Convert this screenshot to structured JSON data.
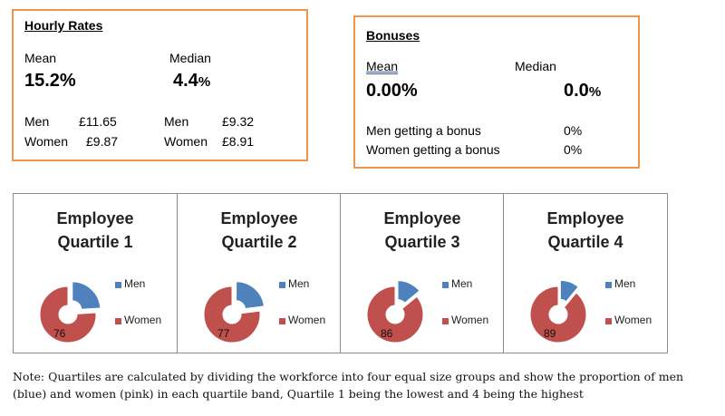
{
  "hourly_rates": {
    "title": "Hourly Rates",
    "mean_label": "Mean",
    "median_label": "Median",
    "mean_value": "15.2%",
    "median_value": "4.4",
    "median_unit": "%",
    "men_label": "Men",
    "women_label": "Women",
    "mean_men": "£11.65",
    "mean_women": "£9.87",
    "median_men": "£9.32",
    "median_women": "£8.91"
  },
  "bonuses": {
    "title": "Bonuses",
    "mean_label": "Mean",
    "median_label": "Median",
    "mean_value": "0.00%",
    "median_value": "0.0",
    "median_unit": "%",
    "men_bonus_label": "Men getting a bonus",
    "women_bonus_label": "Women getting a bonus",
    "men_bonus_value": "0%",
    "women_bonus_value": "0%"
  },
  "colors": {
    "men": "#4f81bd",
    "women": "#c0504d",
    "box_border": "#f0954a"
  },
  "chart_data": [
    {
      "type": "pie",
      "title_line1": "Employee",
      "title_line2": "Quartile 1",
      "legend": "right",
      "categories": [
        "Men",
        "Women"
      ],
      "values": [
        24,
        76
      ],
      "data_labels": [
        "",
        "76"
      ]
    },
    {
      "type": "pie",
      "title_line1": "Employee",
      "title_line2": "Quartile 2",
      "legend": "right",
      "categories": [
        "Men",
        "Women"
      ],
      "values": [
        23,
        77
      ],
      "data_labels": [
        "",
        "77"
      ]
    },
    {
      "type": "pie",
      "title_line1": "Employee",
      "title_line2": "Quartile 3",
      "legend": "right",
      "categories": [
        "Men",
        "Women"
      ],
      "values": [
        14,
        86
      ],
      "data_labels": [
        "",
        "86"
      ]
    },
    {
      "type": "pie",
      "title_line1": "Employee",
      "title_line2": "Quartile 4",
      "legend": "right",
      "categories": [
        "Men",
        "Women"
      ],
      "values": [
        11,
        89
      ],
      "data_labels": [
        "",
        "89"
      ]
    }
  ],
  "note": "Note: Quartiles are calculated by dividing the workforce into four equal size groups and show the proportion of men (blue) and women (pink) in each quartile band, Quartile 1 being the lowest and 4 being the highest"
}
